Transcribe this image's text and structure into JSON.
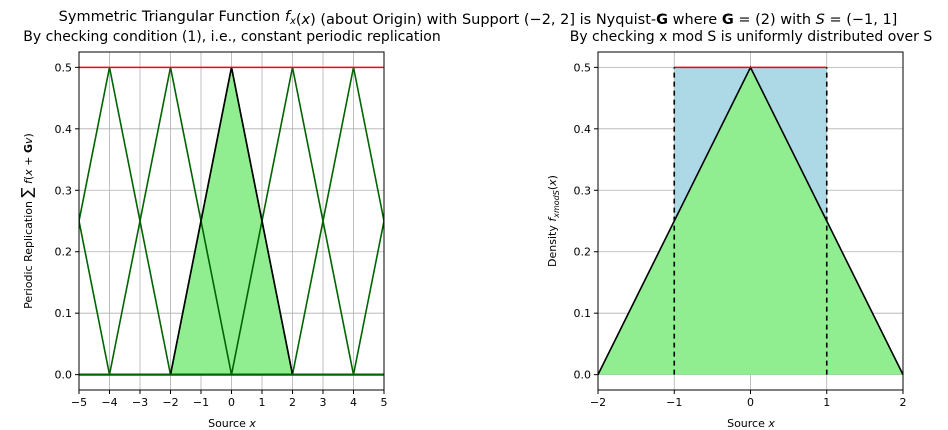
{
  "chart_data": {
    "suptitle": "Symmetric Triangular Function f_x(x) (about Origin) with Support (−2, 2] is Nyquist-G where G = (2) with S = (−1, 1]",
    "charts": [
      {
        "type": "line",
        "title": "By checking condition (1), i.e., constant periodic replication",
        "xlabel": "Source x",
        "ylabel": "Periodic Replication ∑ f(x + Gv)",
        "ylabel_sub": "v∈Z",
        "xlim": [
          -5,
          5
        ],
        "ylim": [
          -0.025,
          0.525
        ],
        "xticks": [
          -5,
          -4,
          -3,
          -2,
          -1,
          0,
          1,
          2,
          3,
          4,
          5
        ],
        "yticks": [
          0.0,
          0.1,
          0.2,
          0.3,
          0.4,
          0.5
        ],
        "grid": true,
        "colors": {
          "fill": "#90ee90",
          "replica": "#006400",
          "sum": "#ff0000",
          "base": "#000000"
        },
        "fill_region": {
          "x": [
            -2,
            0,
            2
          ],
          "y": [
            0,
            0.5,
            0
          ]
        },
        "replicas_centers": [
          -6,
          -4,
          -2,
          0,
          2,
          4,
          6
        ],
        "triangle_halfwidth": 2,
        "peak": 0.5,
        "sum_line": {
          "y": 0.5
        },
        "baseline": {
          "y": 0.0
        }
      },
      {
        "type": "area",
        "title": "By checking x mod S is uniformly distributed over S",
        "xlabel": "Source x",
        "ylabel": "Density f_xmodS(x)",
        "xlim": [
          -2,
          2
        ],
        "ylim": [
          -0.025,
          0.525
        ],
        "xticks": [
          -2,
          -1,
          0,
          1,
          2
        ],
        "yticks": [
          0.0,
          0.1,
          0.2,
          0.3,
          0.4,
          0.5
        ],
        "grid": true,
        "colors": {
          "triangle": "#90ee90",
          "folded": "#add8e6",
          "uniform": "#ff0000",
          "edge": "#000000"
        },
        "triangle": {
          "x": [
            -2,
            0,
            2
          ],
          "y": [
            0,
            0.5,
            0
          ]
        },
        "uniform_density": 0.5,
        "interval": [
          -1,
          1
        ]
      }
    ]
  }
}
